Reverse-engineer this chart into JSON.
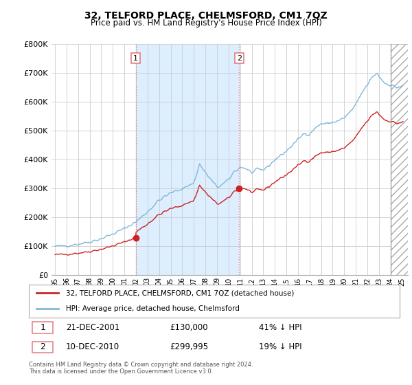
{
  "title": "32, TELFORD PLACE, CHELMSFORD, CM1 7QZ",
  "subtitle": "Price paid vs. HM Land Registry's House Price Index (HPI)",
  "legend_line1": "32, TELFORD PLACE, CHELMSFORD, CM1 7QZ (detached house)",
  "legend_line2": "HPI: Average price, detached house, Chelmsford",
  "annotation1_label": "1",
  "annotation1_date": "21-DEC-2001",
  "annotation1_price": "£130,000",
  "annotation1_hpi": "41% ↓ HPI",
  "annotation1_year": 2001.97,
  "annotation1_value": 130000,
  "annotation2_label": "2",
  "annotation2_date": "10-DEC-2010",
  "annotation2_price": "£299,995",
  "annotation2_hpi": "19% ↓ HPI",
  "annotation2_year": 2010.92,
  "annotation2_value": 299995,
  "footer1": "Contains HM Land Registry data © Crown copyright and database right 2024.",
  "footer2": "This data is licensed under the Open Government Licence v3.0.",
  "ylim": [
    0,
    800000
  ],
  "yticks": [
    0,
    100000,
    200000,
    300000,
    400000,
    500000,
    600000,
    700000,
    800000
  ],
  "ytick_labels": [
    "£0",
    "£100K",
    "£200K",
    "£300K",
    "£400K",
    "£500K",
    "£600K",
    "£700K",
    "£800K"
  ],
  "hpi_color": "#7fb8d8",
  "sale_color": "#cc2222",
  "vline_color": "#e08080",
  "fill_color": "#ddeeff",
  "background_color": "#ffffff",
  "grid_color": "#cccccc",
  "hatch_end_year": 2024.0,
  "xlim_start": 1995.0,
  "xlim_end": 2025.5
}
